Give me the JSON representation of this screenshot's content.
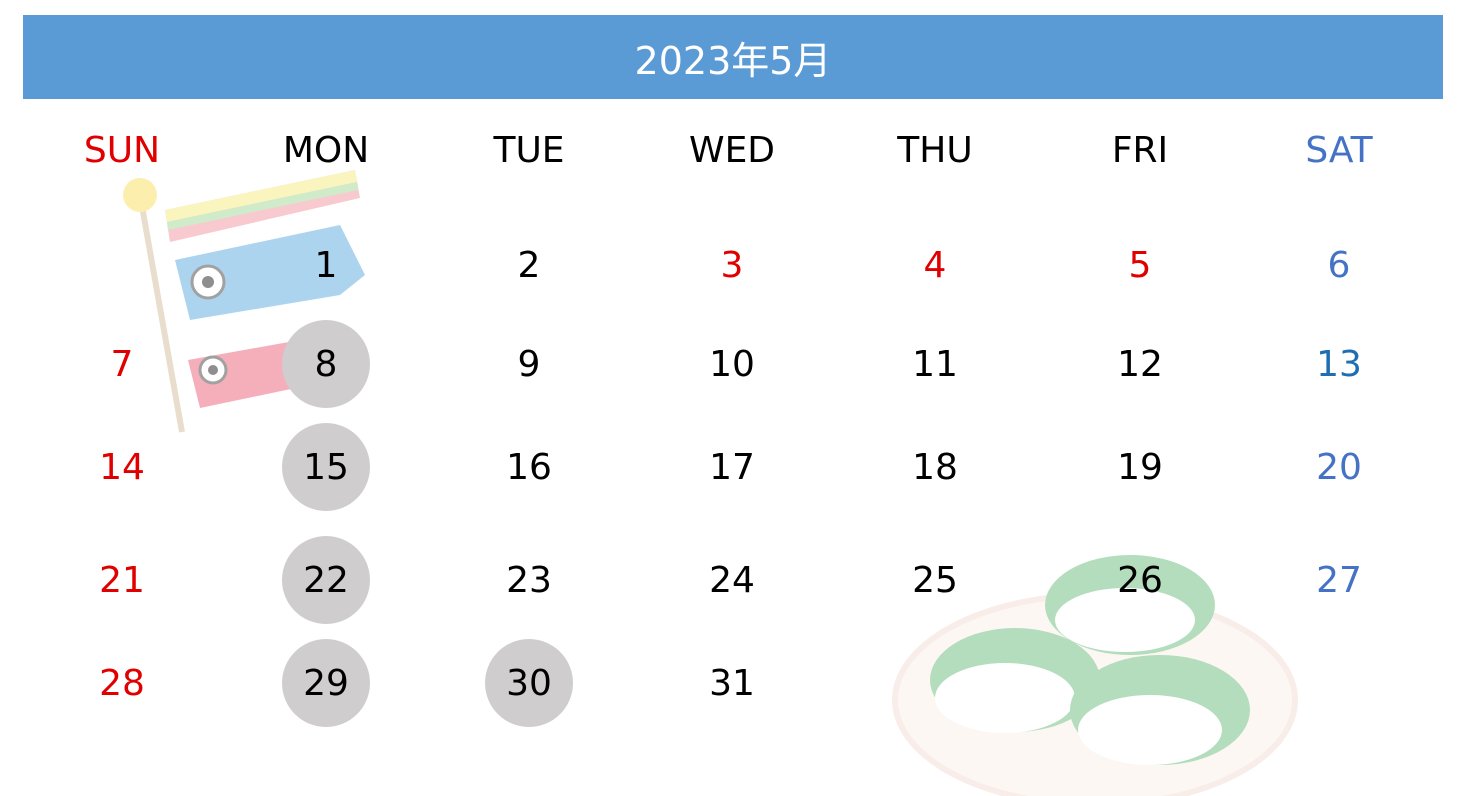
{
  "title": "2023年5月",
  "colors": {
    "header": "#5b9bd5",
    "holiday": "#e00000",
    "saturday": "#4472c4",
    "highlight": "#cfcdcd"
  },
  "weekdays": [
    "SUN",
    "MON",
    "TUE",
    "WED",
    "THU",
    "FRI",
    "SAT"
  ],
  "weeks": [
    [
      null,
      "1",
      "2",
      "3",
      "4",
      "5",
      "6"
    ],
    [
      "7",
      "8",
      "9",
      "10",
      "11",
      "12",
      "13"
    ],
    [
      "14",
      "15",
      "16",
      "17",
      "18",
      "19",
      "20"
    ],
    [
      "21",
      "22",
      "23",
      "24",
      "25",
      "26",
      "27"
    ],
    [
      "28",
      "29",
      "30",
      "31",
      null,
      null,
      null
    ]
  ],
  "holidays": [
    "3",
    "4",
    "5"
  ],
  "highlighted_days": [
    "8",
    "15",
    "22",
    "29",
    "30"
  ],
  "decorations": [
    "koinobori-illustration",
    "kashiwa-mochi-illustration"
  ]
}
